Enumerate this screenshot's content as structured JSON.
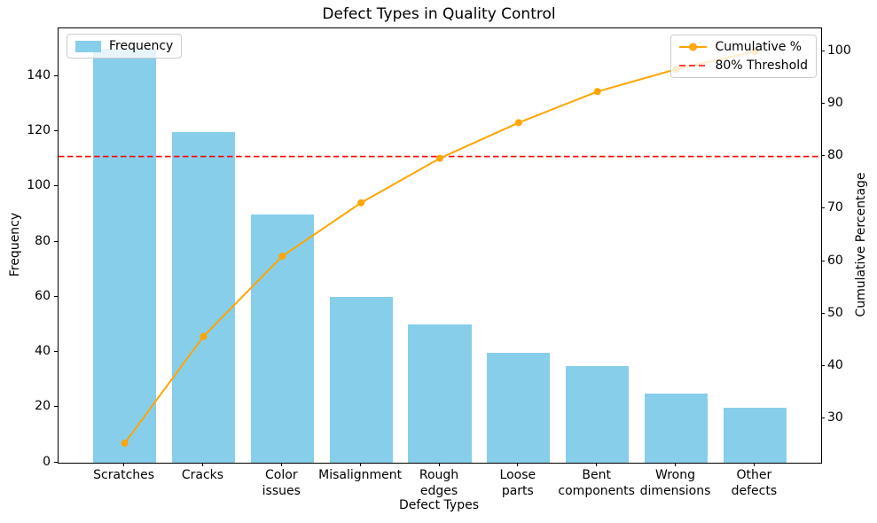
{
  "title": "Defect Types in Quality Control",
  "colors": {
    "bar": "#87CEEB",
    "line": "#FFA500",
    "threshold": "#FF0000",
    "spine": "#000000",
    "legend_border": "#CCCCCC"
  },
  "legend_left": {
    "frequency_label": "Frequency"
  },
  "legend_right": {
    "cumulative_label": "Cumulative %",
    "threshold_label": "80% Threshold"
  },
  "chart_data": {
    "type": "bar",
    "subtype": "pareto (bar + cumulative line, dual axis)",
    "title": "Defect Types in Quality Control",
    "categories": [
      "Scratches",
      "Cracks",
      "Color\nissues",
      "Misalignment",
      "Rough\nedges",
      "Loose\nparts",
      "Bent\ncomponents",
      "Wrong\ndimensions",
      "Other\ndefects"
    ],
    "series": [
      {
        "name": "Frequency",
        "type": "bar",
        "axis": "left",
        "color": "#87CEEB",
        "values": [
          150,
          120,
          90,
          60,
          50,
          40,
          35,
          25,
          20
        ]
      },
      {
        "name": "Cumulative %",
        "type": "line",
        "axis": "right",
        "color": "#FFA500",
        "values": [
          25.42,
          45.76,
          61.02,
          71.19,
          79.66,
          86.44,
          92.37,
          96.61,
          100.0
        ]
      }
    ],
    "threshold": {
      "label": "80% Threshold",
      "value": 80,
      "color": "#FF0000",
      "style": "dashed"
    },
    "xlabel": "Defect Types",
    "ylabel_left": "Frequency",
    "ylabel_right": "Cumulative Percentage",
    "yticks_left": [
      0,
      20,
      40,
      60,
      80,
      100,
      120,
      140
    ],
    "yticks_right": [
      30,
      40,
      50,
      60,
      70,
      80,
      90,
      100
    ],
    "ylim_left": [
      0,
      157.5
    ],
    "ylim_right": [
      21.7,
      104.4
    ],
    "xlim": [
      -0.84,
      8.84
    ],
    "grid": false,
    "legend_positions": [
      "upper left: Frequency",
      "upper right: Cumulative % / 80% Threshold"
    ]
  }
}
